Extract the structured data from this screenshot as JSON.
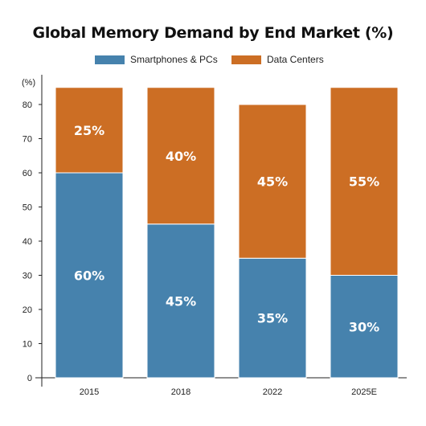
{
  "chart_data": {
    "type": "bar",
    "stacked": true,
    "title": "Global Memory Demand by End Market (%)",
    "ylabel": "(%)",
    "xlabel": "",
    "categories": [
      "2015",
      "2018",
      "2022",
      "2025E"
    ],
    "series": [
      {
        "name": "Smartphones & PCs",
        "color": "#4682ad",
        "values": [
          60,
          45,
          35,
          30
        ],
        "labels": [
          "60%",
          "45%",
          "35%",
          "30%"
        ]
      },
      {
        "name": "Data Centers",
        "color": "#cc6e24",
        "values": [
          25,
          40,
          45,
          55
        ],
        "labels": [
          "25%",
          "40%",
          "45%",
          "55%"
        ]
      }
    ],
    "ylim": [
      0,
      85
    ],
    "yticks": [
      0,
      10,
      20,
      30,
      40,
      50,
      60,
      70,
      80
    ],
    "grid": false,
    "legend_position": "top-center"
  }
}
